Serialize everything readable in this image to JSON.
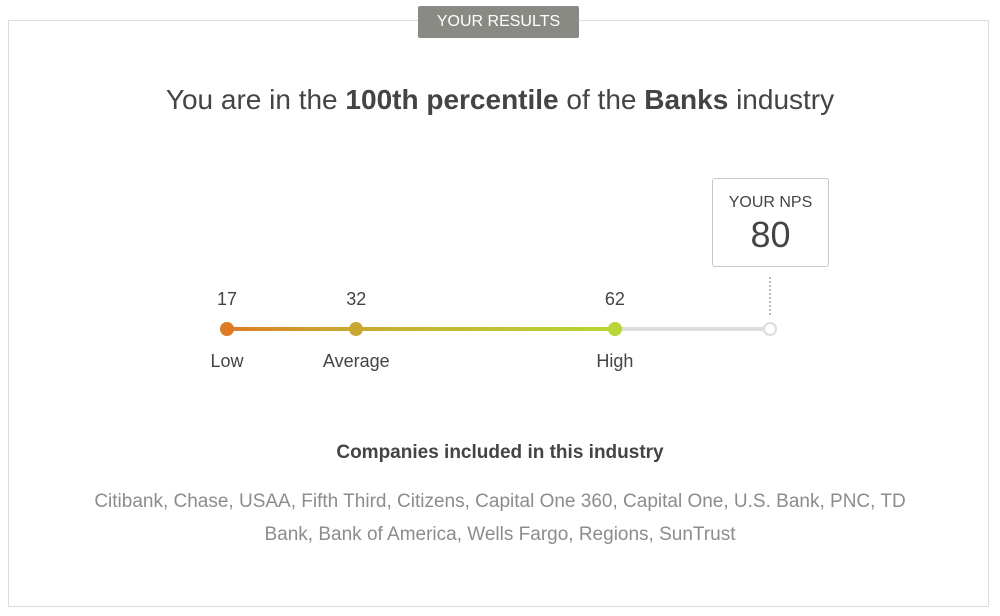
{
  "badge": "YOUR RESULTS",
  "headline": [
    {
      "text": "You are in the ",
      "bold": false
    },
    {
      "text": "100th percentile",
      "bold": true
    },
    {
      "text": " of the ",
      "bold": false
    },
    {
      "text": "Banks",
      "bold": true
    },
    {
      "text": " industry",
      "bold": false
    }
  ],
  "scale": {
    "points": [
      {
        "value": 17,
        "label": "Low"
      },
      {
        "value": 32,
        "label": "Average"
      },
      {
        "value": 62,
        "label": "High"
      }
    ],
    "your_nps": {
      "label": "YOUR NPS",
      "value": 80
    }
  },
  "companies": {
    "title": "Companies included in this industry",
    "list": "Citibank, Chase, USAA, Fifth Third, Citizens, Capital One 360, Capital One, U.S. Bank, PNC, TD Bank, Bank of America, Wells Fargo, Regions, SunTrust"
  }
}
